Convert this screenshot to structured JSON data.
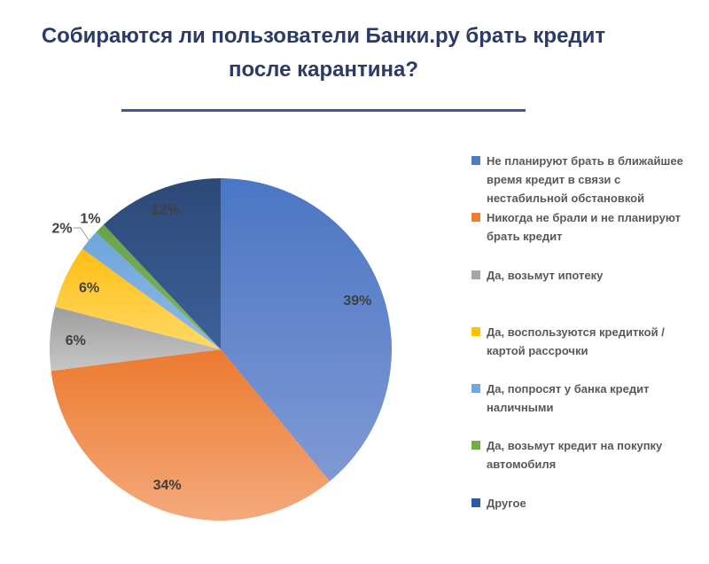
{
  "header": {
    "title_color": "#2B3A67",
    "underline_color": "#3D5A96"
  },
  "chart_data": {
    "type": "pie",
    "title": "Собираются ли пользователи Банки.ру брать кредит после карантина?",
    "start_angle_deg": 0,
    "direction": "clockwise",
    "legend_position": "right",
    "grid": "off",
    "data_label_color": "#404040",
    "leader_line_color": "#9a9a9a",
    "slices": [
      {
        "label": "Не планируют брать в ближайшее время кредит в связи с нестабильной обстановкой",
        "value": 39,
        "pct_label": "39%",
        "color": "#4A76C4",
        "color_light": "#8099D4",
        "legend_color": "#4A7EBE",
        "label_placement": "inside"
      },
      {
        "label": "Никогда не брали и не планируют брать кредит",
        "value": 34,
        "pct_label": "34%",
        "color": "#EC7A2F",
        "color_light": "#F4A97C",
        "legend_color": "#ED7D31",
        "label_placement": "inside"
      },
      {
        "label": "Да, возьмут ипотеку",
        "value": 6,
        "pct_label": "6%",
        "color": "#9E9E9E",
        "color_light": "#C6C6C6",
        "legend_color": "#A6A6A6",
        "label_placement": "inside"
      },
      {
        "label": "Да, воспользуются кредиткой / картой рассрочки",
        "value": 6,
        "pct_label": "6%",
        "color": "#FEBE12",
        "color_light": "#FFD967",
        "legend_color": "#FFC000",
        "label_placement": "inside"
      },
      {
        "label": "Да, попросят у банка кредит наличными",
        "value": 2,
        "pct_label": "2%",
        "color": "#6FA5DB",
        "color_light": "#8CBAE6",
        "legend_color": "#6FA8DC",
        "label_placement": "outside-leader",
        "label_x": 70,
        "label_y": 257
      },
      {
        "label": "Да, возьмут кредит на покупку автомобиля",
        "value": 1,
        "pct_label": "1%",
        "color": "#69A34A",
        "color_light": "#7FB560",
        "legend_color": "#70AD47",
        "label_placement": "outside",
        "label_x": 102,
        "label_y": 246
      },
      {
        "label": "Другое",
        "value": 12,
        "pct_label": "12%",
        "color": "#2C4977",
        "color_light": "#3E5F9A",
        "legend_color": "#2F5B9E",
        "label_placement": "inside",
        "label_rf": 0.88
      }
    ]
  }
}
